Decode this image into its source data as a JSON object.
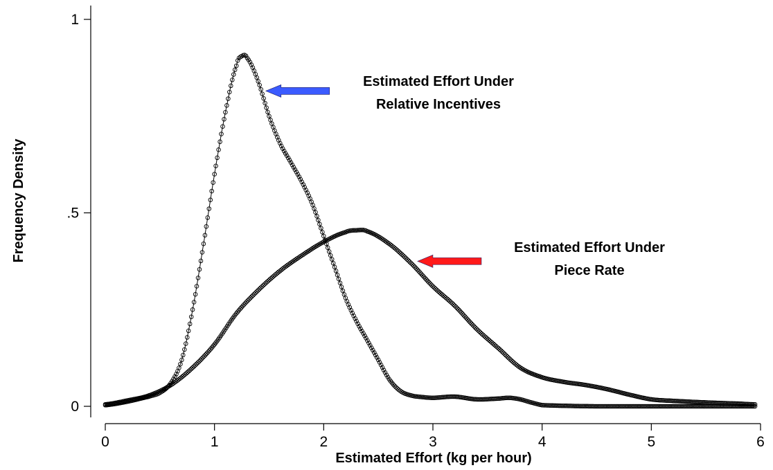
{
  "chart_data": {
    "type": "line",
    "title": "",
    "xlabel": "Estimated Effort (kg per hour)",
    "ylabel": "Frequency Density",
    "xlim": [
      0,
      6
    ],
    "ylim": [
      0,
      1
    ],
    "x_ticks": [
      {
        "value": 0,
        "label": "0"
      },
      {
        "value": 1,
        "label": "1"
      },
      {
        "value": 2,
        "label": "2"
      },
      {
        "value": 3,
        "label": "3"
      },
      {
        "value": 4,
        "label": "4"
      },
      {
        "value": 5,
        "label": "5"
      },
      {
        "value": 6,
        "label": "6"
      }
    ],
    "y_ticks": [
      {
        "value": 0,
        "label": "0"
      },
      {
        "value": 0.5,
        "label": ".5"
      },
      {
        "value": 1,
        "label": "1"
      }
    ],
    "grid": false,
    "marker": "hollow-circle",
    "series": [
      {
        "key": "relative",
        "points": [
          [
            0.0,
            0.003
          ],
          [
            0.2,
            0.012
          ],
          [
            0.4,
            0.025
          ],
          [
            0.5,
            0.035
          ],
          [
            0.6,
            0.06
          ],
          [
            0.7,
            0.12
          ],
          [
            0.8,
            0.25
          ],
          [
            0.9,
            0.42
          ],
          [
            1.0,
            0.6
          ],
          [
            1.1,
            0.76
          ],
          [
            1.2,
            0.88
          ],
          [
            1.25,
            0.905
          ],
          [
            1.3,
            0.9
          ],
          [
            1.4,
            0.84
          ],
          [
            1.5,
            0.75
          ],
          [
            1.6,
            0.68
          ],
          [
            1.7,
            0.63
          ],
          [
            1.8,
            0.58
          ],
          [
            1.9,
            0.52
          ],
          [
            2.0,
            0.44
          ],
          [
            2.1,
            0.36
          ],
          [
            2.2,
            0.28
          ],
          [
            2.3,
            0.22
          ],
          [
            2.4,
            0.17
          ],
          [
            2.5,
            0.12
          ],
          [
            2.6,
            0.07
          ],
          [
            2.7,
            0.04
          ],
          [
            2.8,
            0.028
          ],
          [
            2.9,
            0.024
          ],
          [
            3.0,
            0.022
          ],
          [
            3.2,
            0.025
          ],
          [
            3.4,
            0.018
          ],
          [
            3.6,
            0.02
          ],
          [
            3.7,
            0.022
          ],
          [
            3.8,
            0.018
          ],
          [
            3.9,
            0.01
          ],
          [
            4.0,
            0.003
          ],
          [
            4.5,
            0.0
          ],
          [
            5.0,
            0.0
          ],
          [
            5.5,
            0.0
          ],
          [
            5.95,
            0.0
          ]
        ]
      },
      {
        "key": "piece",
        "points": [
          [
            0.0,
            0.005
          ],
          [
            0.2,
            0.015
          ],
          [
            0.4,
            0.028
          ],
          [
            0.6,
            0.055
          ],
          [
            0.8,
            0.1
          ],
          [
            1.0,
            0.16
          ],
          [
            1.2,
            0.24
          ],
          [
            1.4,
            0.3
          ],
          [
            1.6,
            0.35
          ],
          [
            1.8,
            0.39
          ],
          [
            2.0,
            0.425
          ],
          [
            2.2,
            0.45
          ],
          [
            2.3,
            0.455
          ],
          [
            2.4,
            0.452
          ],
          [
            2.6,
            0.42
          ],
          [
            2.8,
            0.37
          ],
          [
            3.0,
            0.31
          ],
          [
            3.2,
            0.26
          ],
          [
            3.4,
            0.2
          ],
          [
            3.6,
            0.15
          ],
          [
            3.8,
            0.1
          ],
          [
            4.0,
            0.075
          ],
          [
            4.2,
            0.063
          ],
          [
            4.4,
            0.055
          ],
          [
            4.6,
            0.044
          ],
          [
            4.8,
            0.03
          ],
          [
            5.0,
            0.018
          ],
          [
            5.2,
            0.014
          ],
          [
            5.5,
            0.01
          ],
          [
            5.8,
            0.007
          ],
          [
            5.95,
            0.005
          ]
        ]
      }
    ],
    "annotations": [
      {
        "key": "relative",
        "lines": [
          "Estimated Effort Under",
          "Relative Incentives"
        ],
        "arrow_color": "#3b5bff",
        "target": [
          1.47,
          0.815
        ]
      },
      {
        "key": "piece",
        "lines": [
          "Estimated Effort Under",
          "Piece Rate"
        ],
        "arrow_color": "#ff1a1a",
        "target": [
          2.86,
          0.375
        ]
      }
    ]
  }
}
